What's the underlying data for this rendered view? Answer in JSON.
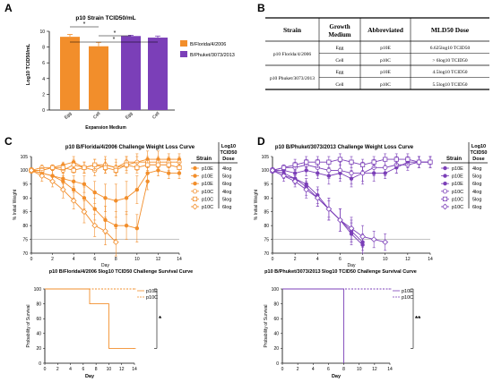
{
  "colors": {
    "orange": "#f28e2b",
    "purple": "#7b3fb8",
    "axis": "#000000",
    "threshold": "#888888"
  },
  "panel_labels": [
    "A",
    "B",
    "C",
    "D"
  ],
  "chart_data": [
    {
      "id": "A",
      "type": "bar",
      "title": "p10 Strain TCID50/mL",
      "xlabel": "Expansion Medium",
      "ylabel": "Log10 TCID50/mL",
      "ylim": [
        0,
        10
      ],
      "yticks": [
        "0",
        "2",
        "4",
        "6",
        "8",
        "10"
      ],
      "categories": [
        "Egg",
        "Cell",
        "Egg",
        "Cell"
      ],
      "values": [
        9.3,
        8.1,
        9.4,
        9.2
      ],
      "errors": [
        0.3,
        0.5,
        0.1,
        0.2
      ],
      "bar_colors": [
        "orange",
        "orange",
        "purple",
        "purple"
      ],
      "legend": [
        {
          "name": "B/Florida/4/2006",
          "color": "orange"
        },
        {
          "name": "B/Phuket/3073/2013",
          "color": "purple"
        }
      ],
      "significance": [
        "*",
        "*",
        "*"
      ]
    },
    {
      "id": "C-weight",
      "type": "line",
      "title": "p10 B/Florida/4/2006 Challenge Weight Loss Curve",
      "xlabel": "Day",
      "ylabel": "% Initial Weight",
      "xlim": [
        0,
        14
      ],
      "ylim": [
        70,
        105
      ],
      "xticks": [
        "0",
        "2",
        "4",
        "6",
        "8",
        "10",
        "12",
        "14"
      ],
      "yticks": [
        "70",
        "75",
        "80",
        "85",
        "90",
        "95",
        "100",
        "105"
      ],
      "threshold": 75,
      "legend_header": {
        "strain": "Strain",
        "dose": "Log10 TCID50 Dose"
      },
      "series": [
        {
          "name": "p10E",
          "dose": "4log",
          "marker": "filled-circle",
          "x": [
            0,
            1,
            2,
            3,
            4,
            5,
            6,
            7,
            8,
            9,
            10,
            11,
            12,
            13,
            14
          ],
          "y": [
            100,
            100,
            101,
            102,
            103,
            101,
            102,
            102,
            101,
            102,
            103,
            104,
            104,
            104,
            104
          ],
          "err": [
            1,
            1,
            1,
            1,
            2,
            2,
            2,
            3,
            3,
            3,
            3,
            3,
            3,
            2,
            2
          ]
        },
        {
          "name": "p10E",
          "dose": "5log",
          "marker": "filled-circle",
          "x": [
            0,
            1,
            2,
            3,
            4,
            5,
            6,
            7,
            8,
            9,
            10,
            11,
            12,
            13,
            14
          ],
          "y": [
            100,
            99,
            98,
            97,
            96,
            95,
            92,
            90,
            89,
            90,
            93,
            99,
            100,
            99,
            99
          ],
          "err": [
            1,
            1,
            2,
            2,
            2,
            3,
            4,
            5,
            6,
            6,
            5,
            3,
            2,
            2,
            2
          ]
        },
        {
          "name": "p10E",
          "dose": "6log",
          "marker": "filled-circle",
          "x": [
            0,
            1,
            2,
            3,
            4,
            5,
            6,
            7,
            8,
            9,
            10,
            11
          ],
          "y": [
            100,
            99,
            98,
            96,
            93,
            90,
            86,
            82,
            80,
            80,
            79,
            96
          ],
          "err": [
            1,
            1,
            2,
            2,
            3,
            4,
            4,
            5,
            5,
            5,
            5,
            3
          ]
        },
        {
          "name": "p10C",
          "dose": "4log",
          "marker": "open-circle",
          "x": [
            0,
            1,
            2,
            3,
            4,
            5,
            6,
            7,
            8,
            9,
            10,
            11,
            12,
            13,
            14
          ],
          "y": [
            100,
            101,
            101,
            100,
            102,
            101,
            100,
            102,
            101,
            103,
            103,
            103,
            103,
            103,
            103
          ],
          "err": [
            1,
            1,
            1,
            1,
            2,
            2,
            2,
            2,
            2,
            2,
            2,
            2,
            2,
            2,
            2
          ]
        },
        {
          "name": "p10C",
          "dose": "5log",
          "marker": "open-square",
          "x": [
            0,
            1,
            2,
            3,
            4,
            5,
            6,
            7,
            8,
            9,
            10,
            11,
            12,
            13,
            14
          ],
          "y": [
            100,
            100,
            101,
            101,
            100,
            101,
            102,
            101,
            100,
            102,
            101,
            102,
            102,
            102,
            101
          ],
          "err": [
            1,
            1,
            1,
            1,
            1,
            2,
            2,
            2,
            2,
            2,
            2,
            2,
            2,
            2,
            2
          ]
        },
        {
          "name": "p10C",
          "dose": "6log",
          "marker": "open-diamond",
          "x": [
            0,
            1,
            2,
            3,
            4,
            5,
            6,
            7,
            8
          ],
          "y": [
            100,
            98,
            96,
            93,
            89,
            85,
            80,
            78,
            74
          ],
          "err": [
            1,
            2,
            2,
            3,
            3,
            4,
            4,
            5,
            5
          ]
        }
      ]
    },
    {
      "id": "C-survival",
      "type": "line",
      "title": "p10 B/Florida/4/2006 5log10 TCID50 Challenge Survival Curve",
      "xlabel": "Day",
      "ylabel": "Probability of Survival",
      "xlim": [
        0,
        14
      ],
      "ylim": [
        0,
        100
      ],
      "xticks": [
        "0",
        "2",
        "4",
        "6",
        "8",
        "10",
        "12",
        "14"
      ],
      "yticks": [
        "0",
        "20",
        "40",
        "60",
        "80",
        "100"
      ],
      "significance": "*",
      "series": [
        {
          "name": "p10E",
          "style": "solid",
          "x": [
            0,
            7,
            7,
            8,
            8,
            10,
            10,
            14
          ],
          "y": [
            100,
            100,
            80,
            80,
            80,
            80,
            20,
            20
          ]
        },
        {
          "name": "p10C",
          "style": "dashed",
          "x": [
            0,
            14
          ],
          "y": [
            100,
            100
          ]
        }
      ]
    },
    {
      "id": "D-weight",
      "type": "line",
      "title": "p10 B/Phuket/3073/2013 Challenge Weight Loss Curve",
      "xlabel": "Day",
      "ylabel": "% Initial Weight",
      "xlim": [
        0,
        14
      ],
      "ylim": [
        70,
        105
      ],
      "xticks": [
        "0",
        "2",
        "4",
        "6",
        "8",
        "10",
        "12",
        "14"
      ],
      "yticks": [
        "70",
        "75",
        "80",
        "85",
        "90",
        "95",
        "100",
        "105"
      ],
      "threshold": 75,
      "legend_header": {
        "strain": "Strain",
        "dose": "Log10 TCID50 Dose"
      },
      "series": [
        {
          "name": "p10E",
          "dose": "4log",
          "marker": "filled-circle",
          "x": [
            0,
            1,
            2,
            3,
            4,
            5,
            6,
            7,
            8,
            9,
            10,
            11,
            12,
            13,
            14
          ],
          "y": [
            100,
            100,
            99,
            100,
            99,
            98,
            99,
            97,
            99,
            99,
            99,
            101,
            103,
            103,
            103
          ],
          "err": [
            1,
            1,
            2,
            2,
            2,
            3,
            3,
            3,
            3,
            3,
            2,
            2,
            2,
            2,
            2
          ]
        },
        {
          "name": "p10E",
          "dose": "5log",
          "marker": "filled-circle",
          "x": [
            0,
            1,
            2,
            3,
            4,
            5,
            6,
            7,
            8
          ],
          "y": [
            100,
            98,
            97,
            94,
            90,
            86,
            82,
            77,
            73
          ],
          "err": [
            1,
            1,
            2,
            3,
            3,
            4,
            4,
            4,
            3
          ]
        },
        {
          "name": "p10E",
          "dose": "6log",
          "marker": "filled-circle",
          "x": [
            0,
            1,
            2,
            3,
            4,
            5,
            6,
            7,
            8
          ],
          "y": [
            100,
            99,
            97,
            95,
            91,
            86,
            82,
            78,
            74
          ],
          "err": [
            1,
            1,
            2,
            2,
            3,
            3,
            4,
            4,
            3
          ]
        },
        {
          "name": "p10C",
          "dose": "4log",
          "marker": "open-circle",
          "x": [
            0,
            1,
            2,
            3,
            4,
            5,
            6,
            7,
            8,
            9,
            10,
            11,
            12,
            13,
            14
          ],
          "y": [
            100,
            101,
            101,
            102,
            101,
            100,
            100,
            99,
            99,
            101,
            101,
            102,
            102,
            103,
            103
          ],
          "err": [
            1,
            1,
            2,
            2,
            3,
            3,
            3,
            4,
            4,
            3,
            3,
            3,
            2,
            2,
            2
          ]
        },
        {
          "name": "p10C",
          "dose": "5log",
          "marker": "open-square",
          "x": [
            0,
            1,
            2,
            3,
            4,
            5,
            6,
            7,
            8,
            9,
            10,
            11,
            12,
            13,
            14
          ],
          "y": [
            100,
            101,
            102,
            103,
            103,
            103,
            104,
            103,
            102,
            103,
            104,
            104,
            104,
            103,
            103
          ],
          "err": [
            1,
            1,
            2,
            2,
            2,
            2,
            2,
            2,
            2,
            2,
            2,
            2,
            2,
            2,
            2
          ]
        },
        {
          "name": "p10C",
          "dose": "6log",
          "marker": "open-diamond",
          "x": [
            0,
            1,
            2,
            3,
            4,
            5,
            6,
            7,
            8,
            9,
            10
          ],
          "y": [
            100,
            98,
            96,
            93,
            90,
            86,
            82,
            79,
            76,
            75,
            74
          ],
          "err": [
            1,
            2,
            2,
            3,
            3,
            4,
            4,
            4,
            4,
            3,
            3
          ]
        }
      ]
    },
    {
      "id": "D-survival",
      "type": "line",
      "title": "p10 B/Phuket/3073/2013 5log10 TCID50 Challenge Survival Curve",
      "xlabel": "Day",
      "ylabel": "Probability of Survival",
      "xlim": [
        0,
        14
      ],
      "ylim": [
        0,
        100
      ],
      "xticks": [
        "0",
        "2",
        "4",
        "6",
        "8",
        "10",
        "12",
        "14"
      ],
      "yticks": [
        "0",
        "20",
        "40",
        "60",
        "80",
        "100"
      ],
      "significance": "**",
      "series": [
        {
          "name": "p10E",
          "style": "solid",
          "x": [
            0,
            8,
            8
          ],
          "y": [
            100,
            100,
            0
          ]
        },
        {
          "name": "p10C",
          "style": "dashed",
          "x": [
            0,
            14
          ],
          "y": [
            100,
            100
          ]
        }
      ]
    }
  ],
  "table_b": {
    "headers": [
      "Strain",
      "Growth Medium",
      "Abbreviated",
      "MLD50 Dose"
    ],
    "rows": [
      {
        "strain": "p10 Florida/4/2006",
        "medium": "Egg",
        "abbr": "p10E",
        "dose": "6.625log10 TCID50"
      },
      {
        "strain": "",
        "medium": "Cell",
        "abbr": "p10C",
        "dose": "> 6log10 TCID50"
      },
      {
        "strain": "p10 Phuket/3073/2013",
        "medium": "Egg",
        "abbr": "p10E",
        "dose": "4.5log10 TCID50"
      },
      {
        "strain": "",
        "medium": "Cell",
        "abbr": "p10C",
        "dose": "5.5log10 TCID50"
      }
    ]
  }
}
